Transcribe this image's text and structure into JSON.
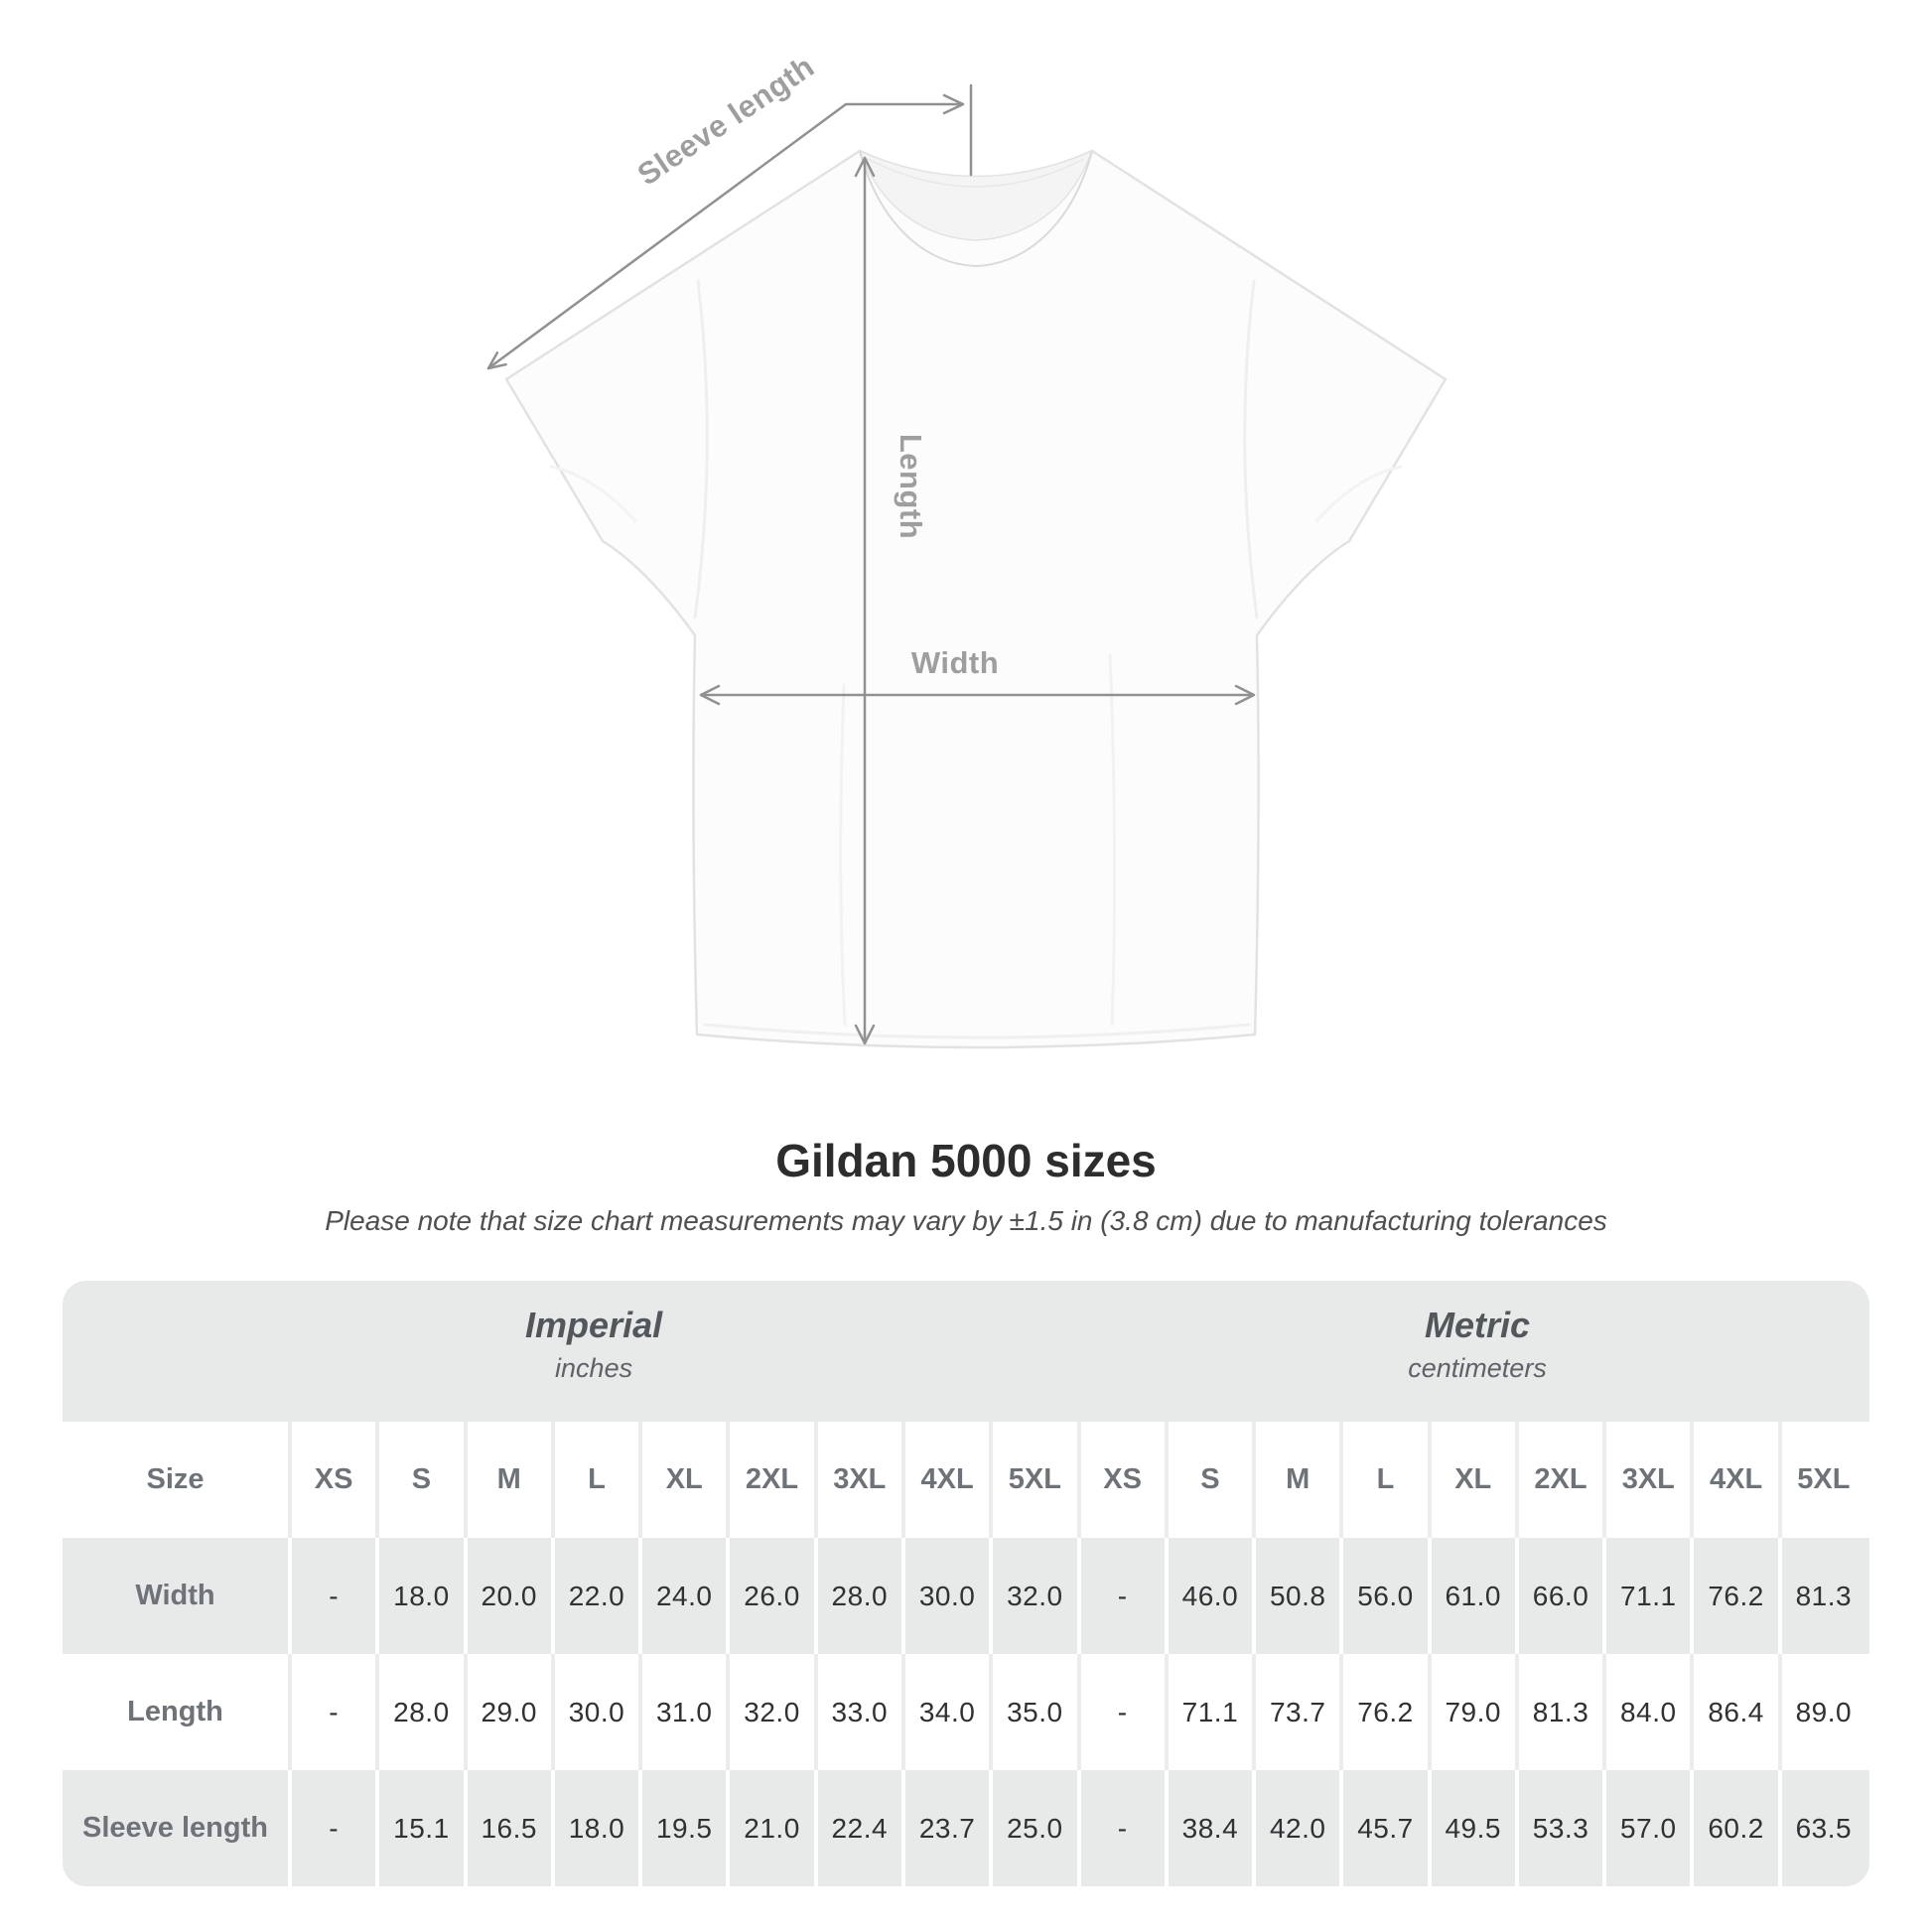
{
  "diagram": {
    "labels": {
      "sleeve_length": "Sleeve length",
      "length": "Length",
      "width": "Width"
    }
  },
  "title": "Gildan 5000 sizes",
  "subtitle": "Please note that size chart measurements may vary by ±1.5 in (3.8 cm) due to manufacturing tolerances",
  "table": {
    "size_header": "Size",
    "unit_groups": [
      {
        "name": "Imperial",
        "unit": "inches"
      },
      {
        "name": "Metric",
        "unit": "centimeters"
      }
    ],
    "sizes": [
      "XS",
      "S",
      "M",
      "L",
      "XL",
      "2XL",
      "3XL",
      "4XL",
      "5XL"
    ],
    "rows": [
      {
        "label": "Width",
        "imperial": [
          "-",
          "18.0",
          "20.0",
          "22.0",
          "24.0",
          "26.0",
          "28.0",
          "30.0",
          "32.0"
        ],
        "metric": [
          "-",
          "46.0",
          "50.8",
          "56.0",
          "61.0",
          "66.0",
          "71.1",
          "76.2",
          "81.3"
        ]
      },
      {
        "label": "Length",
        "imperial": [
          "-",
          "28.0",
          "29.0",
          "30.0",
          "31.0",
          "32.0",
          "33.0",
          "34.0",
          "35.0"
        ],
        "metric": [
          "-",
          "71.1",
          "73.7",
          "76.2",
          "79.0",
          "81.3",
          "84.0",
          "86.4",
          "89.0"
        ]
      },
      {
        "label": "Sleeve length",
        "imperial": [
          "-",
          "15.1",
          "16.5",
          "18.0",
          "19.5",
          "21.0",
          "22.4",
          "23.7",
          "25.0"
        ],
        "metric": [
          "-",
          "38.4",
          "42.0",
          "45.7",
          "49.5",
          "53.3",
          "57.0",
          "60.2",
          "63.5"
        ]
      }
    ]
  },
  "colors": {
    "row_gray": "#e8e9e9",
    "header_text": "#6d7378",
    "value_text": "#2f3133",
    "dimension_line": "#919191",
    "dimension_label": "#9e9e9e",
    "title_text": "#2d2d2d",
    "subtitle_text": "#4f4f4f"
  }
}
